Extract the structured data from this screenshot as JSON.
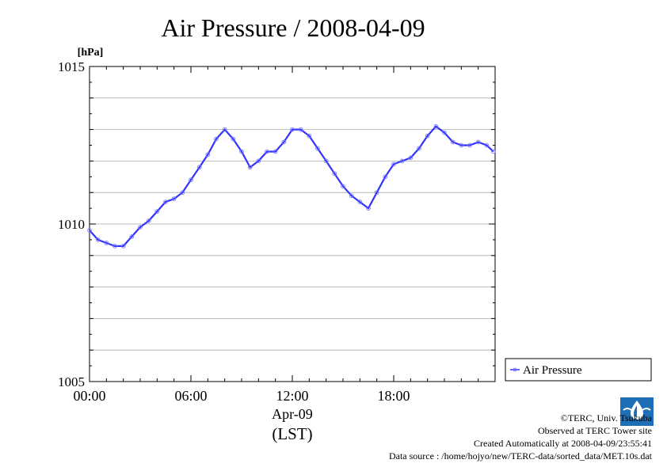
{
  "chart_data": {
    "type": "line",
    "title": "Air Pressure / 2008-04-09",
    "ylabel": "[hPa]",
    "xlabel": "Apr-09",
    "xlabel_sub": "(LST)",
    "ylim": [
      1005,
      1015
    ],
    "xlim": [
      0,
      24
    ],
    "y_ticks": [
      "1015",
      "1010",
      "1005"
    ],
    "y_tick_values": [
      1015,
      1010,
      1005
    ],
    "x_ticks": [
      "00:00",
      "06:00",
      "12:00",
      "18:00"
    ],
    "x_tick_values": [
      0,
      6,
      12,
      18
    ],
    "grid": true,
    "legend_position": "right",
    "series": [
      {
        "name": "Air Pressure",
        "color": "#3333ff",
        "x": [
          0,
          0.5,
          1,
          1.5,
          2,
          2.5,
          3,
          3.5,
          4,
          4.5,
          5,
          5.5,
          6,
          6.5,
          7,
          7.5,
          8,
          8.5,
          9,
          9.5,
          10,
          10.5,
          11,
          11.5,
          12,
          12.5,
          13,
          13.5,
          14,
          14.5,
          15,
          15.5,
          16,
          16.5,
          17,
          17.5,
          18,
          18.5,
          19,
          19.5,
          20,
          20.5,
          21,
          21.5,
          22,
          22.5,
          23,
          23.5,
          23.9
        ],
        "values": [
          1009.8,
          1009.5,
          1009.4,
          1009.3,
          1009.3,
          1009.6,
          1009.9,
          1010.1,
          1010.4,
          1010.7,
          1010.8,
          1011.0,
          1011.4,
          1011.8,
          1012.2,
          1012.7,
          1013.0,
          1012.7,
          1012.3,
          1011.8,
          1012.0,
          1012.3,
          1012.3,
          1012.6,
          1013.0,
          1013.0,
          1012.8,
          1012.4,
          1012.0,
          1011.6,
          1011.2,
          1010.9,
          1010.7,
          1010.5,
          1011.0,
          1011.5,
          1011.9,
          1012.0,
          1012.1,
          1012.4,
          1012.8,
          1013.1,
          1012.9,
          1012.6,
          1012.5,
          1012.5,
          1012.6,
          1012.5,
          1012.3
        ]
      }
    ]
  },
  "credits": {
    "copyright": "©TERC, Univ. Tsukuba",
    "observed": "Observed at TERC Tower site",
    "created": "Created Automatically at 2008-04-09/23:55:41",
    "source": "Data source : /home/hojyo/new/TERC-data/sorted_data/MET.10s.dat",
    "logo_text": "TERC",
    "logo_color": "#1e6fb5"
  }
}
